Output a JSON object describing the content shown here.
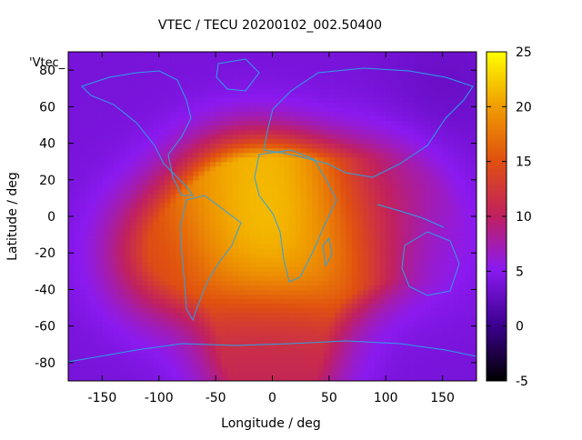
{
  "chart_data": {
    "type": "heatmap",
    "title": "VTEC / TECU 20200102_002.50400",
    "xlabel": "Longitude / deg",
    "ylabel": "Latitude / deg",
    "xlim": [
      -180,
      180
    ],
    "ylim": [
      -90,
      90
    ],
    "x_ticks": [
      -150,
      -100,
      -50,
      0,
      50,
      100,
      150
    ],
    "y_ticks": [
      -80,
      -60,
      -40,
      -20,
      0,
      20,
      40,
      60,
      80
    ],
    "colorbar": {
      "label": "",
      "range": [
        -5,
        25
      ],
      "ticks": [
        -5,
        0,
        5,
        10,
        15,
        20,
        25
      ]
    },
    "legend_label": "'Vtec_",
    "grid": false,
    "overlay": "coastlines",
    "field_description_points": [
      {
        "lon": 0,
        "lat": -10,
        "value": 24
      },
      {
        "lon": 15,
        "lat": -5,
        "value": 23
      },
      {
        "lon": -30,
        "lat": 5,
        "value": 20
      },
      {
        "lon": 60,
        "lat": -10,
        "value": 16
      },
      {
        "lon": -90,
        "lat": -20,
        "value": 14
      },
      {
        "lon": 100,
        "lat": 10,
        "value": 8
      },
      {
        "lon": 150,
        "lat": -20,
        "value": 5
      },
      {
        "lon": -150,
        "lat": 60,
        "value": 4
      },
      {
        "lon": 150,
        "lat": 70,
        "value": 3
      },
      {
        "lon": 0,
        "lat": -60,
        "value": 12
      },
      {
        "lon": 0,
        "lat": -85,
        "value": 10
      }
    ]
  },
  "colors": {
    "coastline": "#29a3e6",
    "background": "#ffffff"
  }
}
